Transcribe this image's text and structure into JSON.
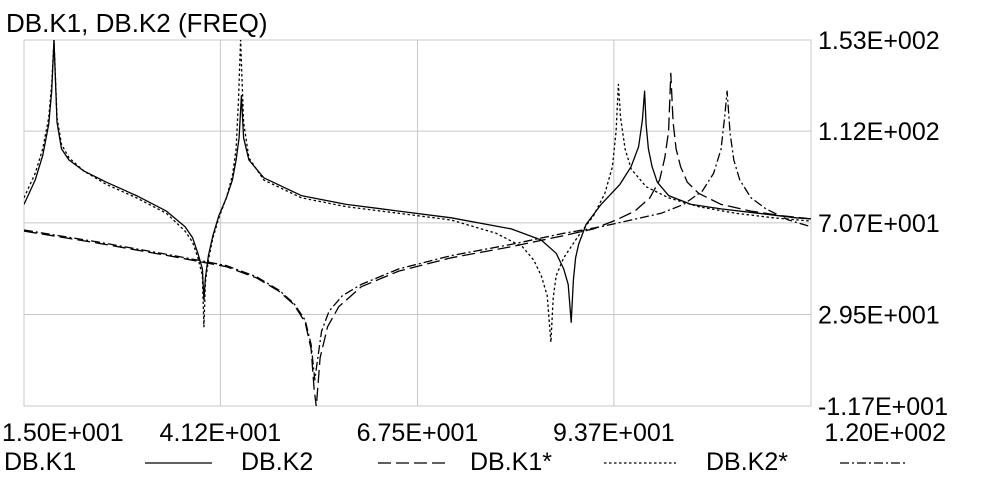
{
  "chart_data": {
    "type": "line",
    "title": "DB.K1, DB.K2 (FREQ)",
    "xlabel": "",
    "ylabel": "",
    "xlim": [
      15.0,
      120.0
    ],
    "ylim": [
      -11.7,
      153.0
    ],
    "x_ticks": [
      15.0,
      41.2,
      67.5,
      93.7,
      120.0
    ],
    "x_tick_labels": [
      "1.50E+001",
      "4.12E+001",
      "6.75E+001",
      "9.37E+001",
      "1.20E+002"
    ],
    "y_ticks": [
      153.0,
      112.0,
      70.7,
      29.5,
      -11.7
    ],
    "y_tick_labels": [
      "1.53E+002",
      "1.12E+002",
      "7.07E+001",
      "2.95E+001",
      "-1.17E+001"
    ],
    "grid": true,
    "legend_position": "bottom",
    "series": [
      {
        "name": "DB.K1",
        "style": "solid",
        "x": [
          15.0,
          16.5,
          17.5,
          18.3,
          18.7,
          19.0,
          19.4,
          20.0,
          21.0,
          23.0,
          26.0,
          30.0,
          34.0,
          36.5,
          37.5,
          38.2,
          38.8,
          39.0,
          39.2,
          39.6,
          40.2,
          41.0,
          42.0,
          42.8,
          43.3,
          43.7,
          44.0,
          44.3,
          45.0,
          47.0,
          52.0,
          58.0,
          65.0,
          72.0,
          80.0,
          84.0,
          86.0,
          87.0,
          87.6,
          88.0,
          88.3,
          88.6,
          89.0,
          90.0,
          92.0,
          94.5,
          96.0,
          97.0,
          97.5,
          97.8,
          98.0,
          98.3,
          98.8,
          99.5,
          101.0,
          104.0,
          108.0,
          113.0,
          118.0,
          120.0
        ],
        "y": [
          79.0,
          90.0,
          101.0,
          115.0,
          130.0,
          153.0,
          116.0,
          104.0,
          99.0,
          94.0,
          89.0,
          83.0,
          76.0,
          69.0,
          64.0,
          57.0,
          50.0,
          36.0,
          46.0,
          56.0,
          65.0,
          74.0,
          82.0,
          90.0,
          99.0,
          109.0,
          128.0,
          109.0,
          99.0,
          91.0,
          83.0,
          79.0,
          76.0,
          73.0,
          68.0,
          63.0,
          57.0,
          50.0,
          43.0,
          26.0,
          45.0,
          55.0,
          61.0,
          70.0,
          79.0,
          88.0,
          96.0,
          105.0,
          117.0,
          130.0,
          115.0,
          104.0,
          96.0,
          89.0,
          83.0,
          79.0,
          77.0,
          75.0,
          73.0,
          72.5
        ]
      },
      {
        "name": "DB.K2",
        "style": "dashed",
        "x": [
          15.0,
          25.0,
          35.0,
          42.0,
          46.0,
          49.0,
          51.0,
          52.5,
          53.3,
          53.7,
          54.0,
          54.5,
          55.5,
          57.0,
          60.0,
          65.0,
          72.0,
          80.0,
          87.0,
          91.0,
          94.0,
          96.5,
          98.5,
          99.8,
          100.5,
          101.0,
          101.3,
          101.6,
          102.0,
          102.6,
          103.5,
          105.0,
          108.0,
          112.0,
          116.0,
          120.0
        ],
        "y": [
          67.0,
          61.5,
          55.5,
          51.0,
          46.0,
          40.0,
          34.0,
          26.0,
          14.0,
          -4.0,
          -12.0,
          10.0,
          24.0,
          33.0,
          42.0,
          49.0,
          55.0,
          60.0,
          65.0,
          68.0,
          72.0,
          76.0,
          82.0,
          90.0,
          100.0,
          112.0,
          138.0,
          116.0,
          104.0,
          96.0,
          89.0,
          84.0,
          79.0,
          76.0,
          74.0,
          72.5
        ]
      },
      {
        "name": "DB.K1*",
        "style": "dotted",
        "x": [
          15.0,
          16.5,
          17.5,
          18.3,
          18.7,
          19.0,
          19.4,
          20.0,
          21.0,
          23.0,
          26.0,
          30.0,
          34.0,
          36.5,
          37.5,
          38.2,
          38.8,
          39.0,
          39.2,
          39.6,
          40.2,
          41.0,
          42.0,
          42.8,
          43.3,
          43.6,
          43.9,
          44.3,
          45.0,
          47.0,
          52.0,
          58.0,
          65.0,
          72.0,
          78.0,
          81.5,
          83.0,
          84.0,
          84.8,
          85.3,
          85.6,
          86.0,
          87.0,
          89.0,
          91.0,
          92.5,
          93.5,
          94.0,
          94.3,
          94.6,
          95.2,
          96.0,
          98.0,
          101.0,
          105.0,
          110.0,
          115.0,
          120.0
        ],
        "y": [
          82.0,
          93.0,
          104.0,
          118.0,
          133.0,
          153.0,
          118.0,
          106.0,
          100.0,
          94.0,
          88.0,
          82.0,
          75.0,
          67.0,
          62.0,
          55.0,
          47.0,
          24.0,
          44.0,
          54.0,
          64.0,
          73.0,
          82.0,
          92.0,
          104.0,
          125.0,
          153.0,
          116.0,
          100.0,
          90.0,
          82.0,
          78.0,
          75.0,
          72.0,
          66.0,
          60.0,
          54.0,
          47.0,
          38.0,
          17.0,
          37.0,
          47.0,
          55.0,
          65.0,
          74.0,
          84.0,
          96.0,
          112.0,
          133.0,
          118.0,
          104.0,
          95.0,
          87.0,
          82.0,
          78.0,
          75.0,
          73.0,
          71.5
        ]
      },
      {
        "name": "DB.K2*",
        "style": "dashdot",
        "x": [
          15.0,
          25.0,
          35.0,
          42.0,
          46.0,
          49.0,
          51.0,
          52.5,
          53.3,
          53.8,
          54.2,
          54.7,
          55.7,
          57.5,
          60.0,
          65.0,
          72.0,
          80.0,
          87.0,
          92.0,
          96.0,
          100.0,
          103.0,
          105.5,
          107.0,
          108.0,
          108.5,
          108.8,
          109.2,
          109.7,
          110.5,
          112.0,
          114.0,
          117.0,
          120.0
        ],
        "y": [
          67.5,
          62.0,
          56.0,
          51.5,
          46.5,
          40.5,
          34.5,
          27.0,
          16.0,
          0.0,
          10.0,
          22.0,
          31.0,
          38.0,
          43.0,
          50.0,
          56.0,
          61.0,
          66.0,
          69.0,
          72.0,
          75.0,
          79.0,
          85.0,
          93.0,
          104.0,
          119.0,
          130.0,
          111.0,
          99.0,
          90.0,
          82.0,
          77.0,
          72.0,
          69.0
        ]
      }
    ]
  }
}
